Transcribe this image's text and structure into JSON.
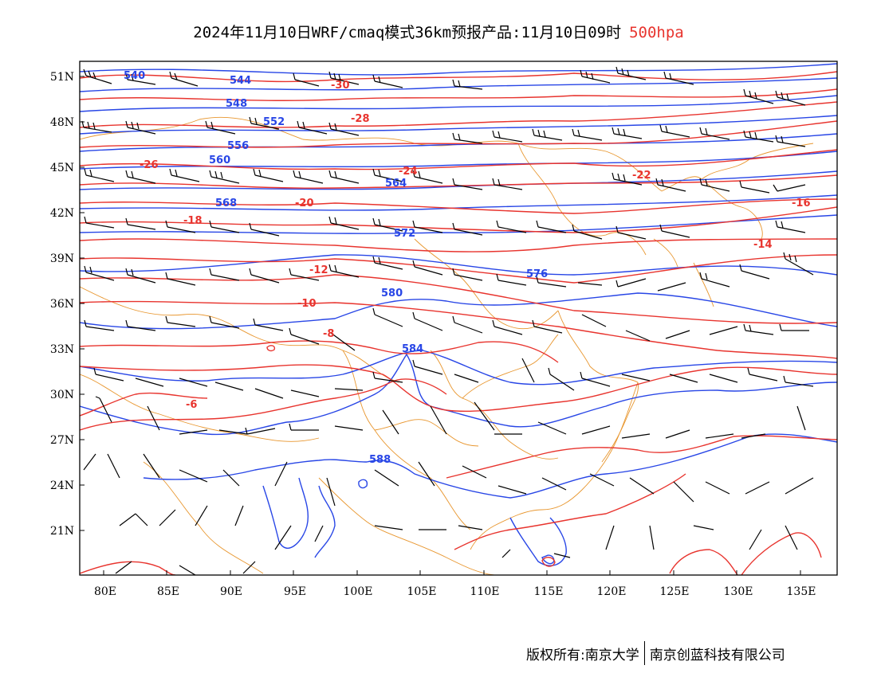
{
  "title": {
    "main": "2024年11月10日WRF/cmaq模式36km预报产品:11月10日09时",
    "level": "500hpa"
  },
  "colors": {
    "height_contour": "#2846e6",
    "temperature_contour": "#e8342e",
    "boundary": "#e8962e",
    "wind_barb": "#000000"
  },
  "axes": {
    "lon_ticks": [
      "80E",
      "85E",
      "90E",
      "95E",
      "100E",
      "105E",
      "110E",
      "115E",
      "120E",
      "125E",
      "130E",
      "135E"
    ],
    "lat_ticks": [
      "51N",
      "48N",
      "45N",
      "42N",
      "39N",
      "36N",
      "33N",
      "30N",
      "27N",
      "24N",
      "21N"
    ]
  },
  "height_labels": [
    "540",
    "544",
    "548",
    "552",
    "556",
    "560",
    "564",
    "568",
    "572",
    "576",
    "580",
    "584",
    "588"
  ],
  "temperature_labels": [
    "-30",
    "-28",
    "-26",
    "-24",
    "-22",
    "-20",
    "-18",
    "-16",
    "-14",
    "-12",
    "-10",
    "-8",
    "-6"
  ],
  "credit": {
    "left": "版权所有:南京大学",
    "right": "南京创蓝科技有限公司"
  }
}
